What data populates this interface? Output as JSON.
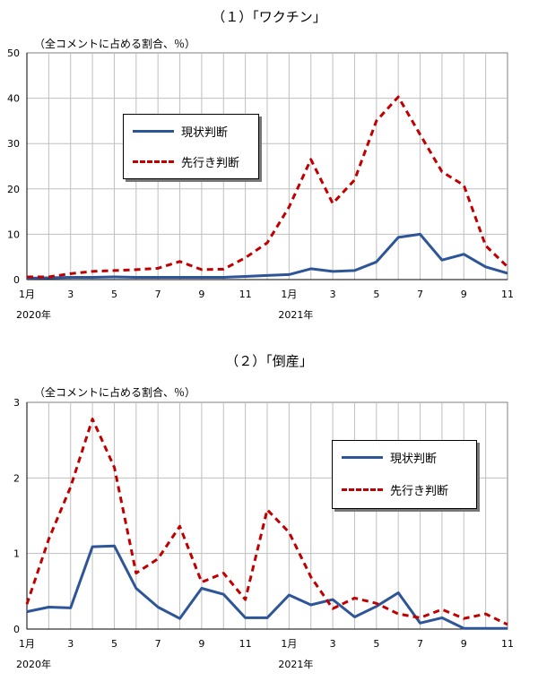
{
  "chart_data": [
    {
      "type": "line",
      "title": "（１）「ワクチン」",
      "unit_label": "（全コメントに占める割合、％）",
      "ylim": [
        0,
        50
      ],
      "y_ticks": [
        0,
        10,
        20,
        30,
        40,
        50
      ],
      "x_tick_labels": [
        "1月",
        "3",
        "5",
        "7",
        "9",
        "11",
        "1月",
        "3",
        "5",
        "7",
        "9",
        "11"
      ],
      "year_labels": [
        "2020年",
        "2021年"
      ],
      "legend": [
        "現状判断",
        "先行き判断"
      ],
      "series": [
        {
          "name": "現状判断",
          "color": "#2e5597",
          "dash": "solid",
          "values": [
            0.3,
            0.4,
            0.5,
            0.5,
            0.6,
            0.5,
            0.5,
            0.5,
            0.5,
            0.5,
            0.7,
            0.9,
            1.1,
            2.4,
            1.8,
            2.0,
            3.9,
            9.3,
            10.0,
            4.3,
            5.6,
            2.8,
            1.4
          ]
        },
        {
          "name": "先行き判断",
          "color": "#c00000",
          "dash": "dashed",
          "values": [
            0.6,
            0.6,
            1.3,
            1.8,
            2.0,
            2.2,
            2.5,
            4.0,
            2.2,
            2.3,
            4.8,
            8.1,
            16.0,
            26.5,
            16.8,
            22.0,
            35.0,
            40.3,
            32.0,
            23.8,
            20.8,
            7.5,
            2.8
          ]
        }
      ]
    },
    {
      "type": "line",
      "title": "（２）「倒産」",
      "unit_label": "（全コメントに占める割合、％）",
      "ylim": [
        0,
        3
      ],
      "y_ticks": [
        0,
        1,
        2,
        3
      ],
      "x_tick_labels": [
        "1月",
        "3",
        "5",
        "7",
        "9",
        "11",
        "1月",
        "3",
        "5",
        "7",
        "9",
        "11"
      ],
      "year_labels": [
        "2020年",
        "2021年"
      ],
      "legend": [
        "現状判断",
        "先行き判断"
      ],
      "series": [
        {
          "name": "現状判断",
          "color": "#2e5597",
          "dash": "solid",
          "values": [
            0.23,
            0.29,
            0.28,
            1.09,
            1.1,
            0.54,
            0.29,
            0.14,
            0.54,
            0.46,
            0.15,
            0.15,
            0.45,
            0.32,
            0.39,
            0.16,
            0.3,
            0.48,
            0.08,
            0.15,
            0.01,
            0.01,
            0.01
          ]
        },
        {
          "name": "先行き判断",
          "color": "#c00000",
          "dash": "dashed",
          "values": [
            0.33,
            1.19,
            1.88,
            2.78,
            2.14,
            0.74,
            0.93,
            1.36,
            0.62,
            0.74,
            0.39,
            1.58,
            1.28,
            0.69,
            0.27,
            0.41,
            0.34,
            0.2,
            0.15,
            0.26,
            0.14,
            0.2,
            0.06
          ]
        }
      ]
    }
  ]
}
